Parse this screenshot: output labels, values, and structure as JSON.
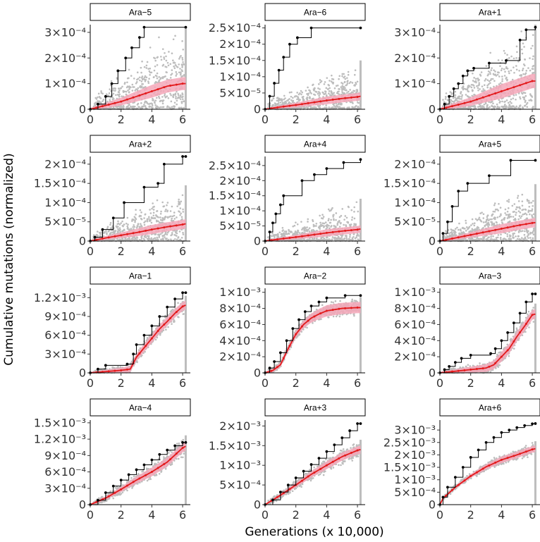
{
  "figure": {
    "x_title": "Generations (x 10,000)",
    "y_title": "Cumulative mutations (normalized)",
    "x_ticks": [
      0,
      2,
      4,
      6
    ],
    "x_tick_labels": [
      "0",
      "2",
      "4",
      "6"
    ]
  },
  "colors": {
    "observed": "#000000",
    "simulated_mean": "#e31a1c",
    "simulated_band": "#f4a7b9",
    "simulated_points": "#bdbdbd"
  },
  "chart_data": [
    {
      "type": "line",
      "title": "Ara−5",
      "xlim": [
        0,
        6.5
      ],
      "ylim": [
        0,
        0.00033
      ],
      "y_ticks": [
        0,
        0.0001,
        0.0002,
        0.0003
      ],
      "y_tick_labels": [
        "0",
        "1×10⁻⁴",
        "2×10⁻⁴",
        "3×10⁻⁴"
      ],
      "observed": {
        "x": [
          0,
          0.5,
          1.0,
          1.4,
          1.8,
          2.3,
          2.7,
          3.2,
          3.5,
          6.2
        ],
        "y": [
          0,
          2e-05,
          5e-05,
          0.0001,
          0.00015,
          0.0002,
          0.00024,
          0.00028,
          0.00032,
          0.00032
        ]
      },
      "mean": {
        "x": [
          0,
          1,
          2,
          3,
          4,
          5,
          6,
          6.2
        ],
        "y": [
          0,
          1.5e-05,
          3e-05,
          5e-05,
          7e-05,
          9e-05,
          0.0001,
          0.0001
        ]
      },
      "band_sd": 2.5e-05,
      "spread_max": 0.00022
    },
    {
      "type": "line",
      "title": "Ara−6",
      "xlim": [
        0,
        6.5
      ],
      "ylim": [
        0,
        0.00026
      ],
      "y_ticks": [
        0,
        5e-05,
        0.0001,
        0.00015,
        0.0002,
        0.00025
      ],
      "y_tick_labels": [
        "0",
        "5×10⁻⁵",
        "1×10⁻⁴",
        "1.5×10⁻⁴",
        "2×10⁻⁴",
        "2.5×10⁻⁴"
      ],
      "observed": {
        "x": [
          0,
          0.3,
          0.6,
          0.9,
          1.2,
          1.6,
          2.1,
          3.0,
          6.2
        ],
        "y": [
          0,
          4e-05,
          8e-05,
          0.00012,
          0.00016,
          0.0002,
          0.00022,
          0.00025,
          0.00025
        ]
      },
      "mean": {
        "x": [
          0,
          1,
          2,
          3,
          4,
          5,
          6,
          6.2
        ],
        "y": [
          0,
          7e-06,
          1.3e-05,
          2e-05,
          2.7e-05,
          3.3e-05,
          3.8e-05,
          4e-05
        ]
      },
      "band_sd": 1.2e-05,
      "spread_max": 0.00011
    },
    {
      "type": "line",
      "title": "Ara+1",
      "xlim": [
        0,
        6.5
      ],
      "ylim": [
        0,
        0.00033
      ],
      "y_ticks": [
        0,
        0.0001,
        0.0002,
        0.0003
      ],
      "y_tick_labels": [
        "0",
        "1×10⁻⁴",
        "2×10⁻⁴",
        "3×10⁻⁴"
      ],
      "observed": {
        "x": [
          0,
          0.3,
          0.6,
          0.9,
          1.2,
          1.5,
          1.8,
          2.2,
          3.2,
          4.3,
          5.2,
          5.6,
          6.2
        ],
        "y": [
          0,
          2e-05,
          5e-05,
          8e-05,
          0.0001,
          0.00013,
          0.00015,
          0.00016,
          0.00018,
          0.00019,
          0.00027,
          0.00031,
          0.00032
        ]
      },
      "mean": {
        "x": [
          0,
          1,
          2,
          3,
          4,
          5,
          6,
          6.2
        ],
        "y": [
          0,
          1.5e-05,
          3e-05,
          5e-05,
          7e-05,
          9e-05,
          0.00011,
          0.00011
        ]
      },
      "band_sd": 2.8e-05,
      "spread_max": 0.00024
    },
    {
      "type": "line",
      "title": "Ara+2",
      "xlim": [
        0,
        6.5
      ],
      "ylim": [
        0,
        0.00022
      ],
      "y_ticks": [
        0,
        5e-05,
        0.0001,
        0.00015,
        0.0002
      ],
      "y_tick_labels": [
        "0",
        "5×10⁻⁵",
        "1×10⁻⁴",
        "1.5×10⁻⁴",
        "2×10⁻⁴"
      ],
      "observed": {
        "x": [
          0,
          0.3,
          0.8,
          1.5,
          2.2,
          3.5,
          4.4,
          4.8,
          6.0,
          6.2
        ],
        "y": [
          0,
          1e-05,
          3e-05,
          6e-05,
          0.0001,
          0.00014,
          0.00015,
          0.0002,
          0.00022,
          0.00022
        ]
      },
      "mean": {
        "x": [
          0,
          1,
          2,
          3,
          4,
          5,
          6,
          6.2
        ],
        "y": [
          0,
          8e-06,
          1.5e-05,
          2.2e-05,
          3e-05,
          3.7e-05,
          4.3e-05,
          4.5e-05
        ]
      },
      "band_sd": 1.2e-05,
      "spread_max": 0.0001
    },
    {
      "type": "line",
      "title": "Ara+4",
      "xlim": [
        0,
        6.5
      ],
      "ylim": [
        0,
        0.00028
      ],
      "y_ticks": [
        0,
        5e-05,
        0.0001,
        0.00015,
        0.0002,
        0.00025
      ],
      "y_tick_labels": [
        "0",
        "5×10⁻⁵",
        "1×10⁻⁴",
        "1.5×10⁻⁴",
        "2×10⁻⁴",
        "2.5×10⁻⁴"
      ],
      "observed": {
        "x": [
          0,
          0.3,
          0.5,
          0.7,
          1.0,
          1.2,
          2.4,
          3.2,
          4.0,
          5.1,
          6.2
        ],
        "y": [
          0,
          3e-05,
          6e-05,
          9e-05,
          0.00012,
          0.00015,
          0.0002,
          0.00022,
          0.00024,
          0.00026,
          0.00027
        ]
      },
      "mean": {
        "x": [
          0,
          1,
          2,
          3,
          4,
          5,
          6,
          6.2
        ],
        "y": [
          0,
          7e-06,
          1.3e-05,
          2e-05,
          2.7e-05,
          3.3e-05,
          3.8e-05,
          4e-05
        ]
      },
      "band_sd": 1.2e-05,
      "spread_max": 0.0001
    },
    {
      "type": "line",
      "title": "Ara+5",
      "xlim": [
        0,
        6.5
      ],
      "ylim": [
        0,
        0.00022
      ],
      "y_ticks": [
        0,
        5e-05,
        0.0001,
        0.00015,
        0.0002
      ],
      "y_tick_labels": [
        "0",
        "5×10⁻⁵",
        "1×10⁻⁴",
        "1.5×10⁻⁴",
        "2×10⁻⁴"
      ],
      "observed": {
        "x": [
          0,
          0.2,
          0.5,
          0.8,
          1.2,
          1.8,
          3.2,
          4.6,
          6.2
        ],
        "y": [
          0,
          2e-05,
          5e-05,
          9e-05,
          0.00013,
          0.00015,
          0.00017,
          0.00021,
          0.00021
        ]
      },
      "mean": {
        "x": [
          0,
          1,
          2,
          3,
          4,
          5,
          6,
          6.2
        ],
        "y": [
          0,
          8e-06,
          1.6e-05,
          2.4e-05,
          3.2e-05,
          4e-05,
          4.7e-05,
          4.8e-05
        ]
      },
      "band_sd": 1.2e-05,
      "spread_max": 0.0001
    },
    {
      "type": "line",
      "title": "Ara−1",
      "xlim": [
        0,
        6.5
      ],
      "ylim": [
        0,
        0.00135
      ],
      "y_ticks": [
        0,
        0.0003,
        0.0006,
        0.0009,
        0.0012
      ],
      "y_tick_labels": [
        "0",
        "3×10⁻⁴",
        "6×10⁻⁴",
        "9×10⁻⁴",
        "1.2×10⁻³"
      ],
      "observed": {
        "x": [
          0,
          0.5,
          1.0,
          2.4,
          2.8,
          3.0,
          3.5,
          4.0,
          4.5,
          5.0,
          5.5,
          6.0,
          6.2
        ],
        "y": [
          0,
          6e-05,
          0.00012,
          0.00014,
          0.0003,
          0.00045,
          0.0006,
          0.00075,
          0.0009,
          0.00105,
          0.00118,
          0.00128,
          0.00128
        ]
      },
      "mean": {
        "x": [
          0,
          1,
          2,
          2.6,
          3,
          3.5,
          4,
          4.5,
          5,
          5.5,
          6,
          6.2
        ],
        "y": [
          0,
          2e-05,
          4e-05,
          6e-05,
          0.00025,
          0.0004,
          0.00055,
          0.0007,
          0.00082,
          0.00095,
          0.00106,
          0.00108
        ]
      },
      "band_sd": 7e-05,
      "spread_max": 0.00015
    },
    {
      "type": "line",
      "title": "Ara−2",
      "xlim": [
        0,
        6.5
      ],
      "ylim": [
        0,
        0.00105
      ],
      "y_ticks": [
        0,
        0.0002,
        0.0004,
        0.0006,
        0.0008,
        0.001
      ],
      "y_tick_labels": [
        "0",
        "2×10⁻⁴",
        "4×10⁻⁴",
        "6×10⁻⁴",
        "8×10⁻⁴",
        "1×10⁻³"
      ],
      "observed": {
        "x": [
          0,
          0.3,
          0.6,
          1.0,
          1.4,
          1.8,
          2.2,
          2.6,
          3.0,
          3.5,
          4.0,
          5.2,
          6.2
        ],
        "y": [
          0,
          6e-05,
          0.00014,
          0.00025,
          0.0004,
          0.00055,
          0.00066,
          0.00076,
          0.00083,
          0.00088,
          0.00093,
          0.00096,
          0.00096
        ]
      },
      "mean": {
        "x": [
          0,
          0.5,
          1,
          1.5,
          2,
          2.5,
          3,
          3.5,
          4,
          5,
          6,
          6.2
        ],
        "y": [
          0,
          3e-05,
          0.0001,
          0.0003,
          0.00048,
          0.0006,
          0.00068,
          0.00073,
          0.00077,
          0.0008,
          0.00081,
          0.00081
        ]
      },
      "band_sd": 7e-05,
      "spread_max": 0.00013
    },
    {
      "type": "line",
      "title": "Ara−3",
      "xlim": [
        0,
        6.5
      ],
      "ylim": [
        0,
        0.00105
      ],
      "y_ticks": [
        0,
        0.0002,
        0.0004,
        0.0006,
        0.0008,
        0.001
      ],
      "y_tick_labels": [
        "0",
        "2×10⁻⁴",
        "4×10⁻⁴",
        "6×10⁻⁴",
        "8×10⁻⁴",
        "1×10⁻³"
      ],
      "observed": {
        "x": [
          0,
          0.3,
          0.6,
          1.0,
          1.4,
          2.0,
          3.3,
          3.6,
          4.0,
          4.4,
          4.8,
          5.2,
          5.6,
          6.0,
          6.2
        ],
        "y": [
          0,
          4e-05,
          8e-05,
          0.00013,
          0.00018,
          0.00022,
          0.00024,
          0.0003,
          0.0004,
          0.0005,
          0.00062,
          0.00074,
          0.00088,
          0.00098,
          0.00098
        ]
      },
      "mean": {
        "x": [
          0,
          1,
          2,
          3,
          3.5,
          4,
          4.5,
          5,
          5.5,
          6,
          6.2
        ],
        "y": [
          0,
          2e-05,
          4e-05,
          6e-05,
          0.0001,
          0.0002,
          0.0003,
          0.00045,
          0.00058,
          0.00072,
          0.00073
        ]
      },
      "band_sd": 6e-05,
      "spread_max": 0.00013
    },
    {
      "type": "line",
      "title": "Ara−4",
      "xlim": [
        0,
        6.5
      ],
      "ylim": [
        0,
        0.00155
      ],
      "y_ticks": [
        0,
        0.0003,
        0.0006,
        0.0009,
        0.0012,
        0.0015
      ],
      "y_tick_labels": [
        "0",
        "3×10⁻⁴",
        "6×10⁻⁴",
        "9×10⁻⁴",
        "1.2×10⁻³",
        "1.5×10⁻³"
      ],
      "observed": {
        "x": [
          0,
          0.5,
          1.0,
          1.5,
          2.0,
          2.5,
          3.0,
          3.5,
          4.0,
          4.5,
          5.0,
          5.5,
          6.0,
          6.2
        ],
        "y": [
          0,
          8e-05,
          0.00022,
          0.00034,
          0.00045,
          0.00055,
          0.00064,
          0.00073,
          0.00082,
          0.00092,
          0.001,
          0.00108,
          0.00114,
          0.00114
        ]
      },
      "mean": {
        "x": [
          0,
          1,
          2,
          3,
          4,
          5,
          6,
          6.2
        ],
        "y": [
          0,
          0.00012,
          0.00028,
          0.00045,
          0.0006,
          0.00078,
          0.00104,
          0.00107
        ]
      },
      "band_sd": 8e-05,
      "spread_max": 0.0002
    },
    {
      "type": "line",
      "title": "Ara+3",
      "xlim": [
        0,
        6.5
      ],
      "ylim": [
        0,
        0.00215
      ],
      "y_ticks": [
        0,
        0.0005,
        0.001,
        0.0015,
        0.002
      ],
      "y_tick_labels": [
        "0",
        "5×10⁻⁴",
        "1×10⁻³",
        "1.5×10⁻³",
        "2×10⁻³"
      ],
      "observed": {
        "x": [
          0,
          0.5,
          1.0,
          1.5,
          2.0,
          2.5,
          3.0,
          3.5,
          4.0,
          4.5,
          5.0,
          5.5,
          6.0,
          6.2
        ],
        "y": [
          0,
          0.00012,
          0.00032,
          0.0005,
          0.00068,
          0.00085,
          0.00102,
          0.00118,
          0.00135,
          0.00152,
          0.0017,
          0.00188,
          0.00206,
          0.00206
        ]
      },
      "mean": {
        "x": [
          0,
          1,
          2,
          3,
          4,
          5,
          6,
          6.2
        ],
        "y": [
          0,
          0.00024,
          0.0005,
          0.00077,
          0.001,
          0.00122,
          0.00138,
          0.0014
        ]
      },
      "band_sd": 0.0001,
      "spread_max": 0.00025
    },
    {
      "type": "line",
      "title": "Ara+6",
      "xlim": [
        0,
        6.5
      ],
      "ylim": [
        0,
        0.0034
      ],
      "y_ticks": [
        0,
        0.0005,
        0.001,
        0.0015,
        0.002,
        0.0025,
        0.003
      ],
      "y_tick_labels": [
        "0",
        "5×10⁻⁴",
        "1×10⁻³",
        "1.5×10⁻³",
        "2×10⁻³",
        "2.5×10⁻³",
        "3×10⁻³"
      ],
      "observed": {
        "x": [
          0,
          0.2,
          0.5,
          1.0,
          1.5,
          2.0,
          2.5,
          3.0,
          3.5,
          4.0,
          4.5,
          5.0,
          5.5,
          6.0,
          6.2
        ],
        "y": [
          0,
          0.0003,
          0.0007,
          0.0011,
          0.0015,
          0.0019,
          0.0022,
          0.0025,
          0.0027,
          0.0029,
          0.003,
          0.0031,
          0.00318,
          0.00325,
          0.00326
        ]
      },
      "mean": {
        "x": [
          0,
          0.2,
          1,
          2,
          3,
          4,
          5,
          6,
          6.2
        ],
        "y": [
          0,
          0.00025,
          0.0007,
          0.00115,
          0.00152,
          0.0018,
          0.002,
          0.00222,
          0.00225
        ]
      },
      "band_sd": 0.00013,
      "spread_max": 0.0003
    }
  ]
}
